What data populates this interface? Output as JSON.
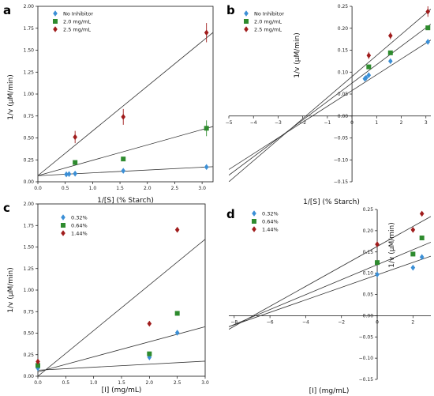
{
  "colors": {
    "blue": "#3b8fd6",
    "green": "#2e8b2e",
    "red": "#a01c1c",
    "line": "#333333",
    "axis": "#111111"
  },
  "chart_data": [
    {
      "id": "a",
      "panel_label": "a",
      "type": "scatter",
      "xlabel": "1/[S] (% Starch)",
      "ylabel": "1/v (µM/min)",
      "xlim": [
        0,
        3.2
      ],
      "ylim": [
        0,
        2.0
      ],
      "xticks": [
        "0.0",
        "0.5",
        "1.0",
        "1.5",
        "2.0",
        "2.5",
        "3.0"
      ],
      "yticks": [
        "0.00",
        "0.25",
        "0.50",
        "0.75",
        "1.00",
        "1.25",
        "1.50",
        "1.75",
        "2.00"
      ],
      "spines": "box",
      "legend_position": "top-left",
      "series": [
        {
          "name": "No Inhibitor",
          "color": "#3b8fd6",
          "marker": "diamond",
          "points": [
            [
              0.52,
              0.085
            ],
            [
              0.57,
              0.088
            ],
            [
              0.68,
              0.093
            ],
            [
              1.56,
              0.125
            ],
            [
              3.08,
              0.168
            ]
          ],
          "line": [
            0.07,
            0.032
          ]
        },
        {
          "name": "2.0 mg/mL",
          "color": "#2e8b2e",
          "marker": "square",
          "points": [
            [
              0.68,
              0.22
            ],
            [
              1.56,
              0.26
            ],
            [
              3.08,
              0.61
            ]
          ],
          "error": [
            0,
            0,
            0.09
          ],
          "line": [
            0.07,
            0.175
          ]
        },
        {
          "name": "2.5 mg/mL",
          "color": "#a01c1c",
          "marker": "diamond",
          "points": [
            [
              0.68,
              0.51
            ],
            [
              1.56,
              0.74
            ],
            [
              3.08,
              1.7
            ]
          ],
          "error": [
            0.07,
            0.09,
            0.11
          ],
          "line": [
            0.07,
            0.51
          ]
        }
      ]
    },
    {
      "id": "b",
      "panel_label": "b",
      "type": "scatter",
      "xlabel": "1/[S] (% Starch)",
      "ylabel": "1/v (µM/min)",
      "xlim": [
        -5,
        3.2
      ],
      "ylim": [
        -0.15,
        0.25
      ],
      "xticks": [
        "−5",
        "−4",
        "−3",
        "−2",
        "−1",
        "0",
        "1",
        "2",
        "3"
      ],
      "yticks": [
        "−0.15",
        "−0.10",
        "−0.05",
        "0.00",
        "0.05",
        "0.10",
        "0.15",
        "0.20",
        "0.25"
      ],
      "spines": "centered",
      "legend_position": "top-left",
      "series": [
        {
          "name": "No Inhibitor",
          "color": "#3b8fd6",
          "marker": "diamond",
          "points": [
            [
              0.52,
              0.085
            ],
            [
              0.57,
              0.087
            ],
            [
              0.68,
              0.093
            ],
            [
              1.56,
              0.125
            ],
            [
              3.08,
              0.169
            ]
          ],
          "line": [
            0.058,
            0.036
          ]
        },
        {
          "name": "2.0 mg/mL",
          "color": "#2e8b2e",
          "marker": "square",
          "points": [
            [
              0.68,
              0.112
            ],
            [
              1.56,
              0.144
            ],
            [
              3.08,
              0.201
            ]
          ],
          "line": [
            0.075,
            0.042
          ]
        },
        {
          "name": "2.5 mg/mL",
          "color": "#a01c1c",
          "marker": "diamond",
          "points": [
            [
              0.68,
              0.138
            ],
            [
              1.56,
              0.183
            ],
            [
              3.08,
              0.238
            ]
          ],
          "error": [
            0.008,
            0.008,
            0.012
          ],
          "line": [
            0.09,
            0.048
          ]
        }
      ]
    },
    {
      "id": "c",
      "panel_label": "c",
      "type": "scatter",
      "xlabel": "[I] (mg/mL)",
      "ylabel": "1/v (µM/min)",
      "xlim": [
        0,
        3.0
      ],
      "ylim": [
        0,
        2.0
      ],
      "xticks": [
        "0.0",
        "0.5",
        "1.0",
        "1.5",
        "2.0",
        "2.5",
        "3.0"
      ],
      "yticks": [
        "0.00",
        "0.25",
        "0.50",
        "0.75",
        "1.00",
        "1.25",
        "1.50",
        "1.75",
        "2.00"
      ],
      "spines": "box",
      "legend_position": "top-left",
      "series": [
        {
          "name": "0.32%",
          "color": "#3b8fd6",
          "marker": "diamond",
          "points": [
            [
              0,
              0.095
            ],
            [
              2.0,
              0.22
            ],
            [
              2.5,
              0.505
            ]
          ],
          "line": [
            0.07,
            0.035
          ]
        },
        {
          "name": "0.64%",
          "color": "#2e8b2e",
          "marker": "square",
          "points": [
            [
              0,
              0.125
            ],
            [
              2.0,
              0.26
            ],
            [
              2.5,
              0.73
            ]
          ],
          "line": [
            0.05,
            0.175
          ]
        },
        {
          "name": "1.44%",
          "color": "#a01c1c",
          "marker": "diamond",
          "points": [
            [
              0,
              0.17
            ],
            [
              2.0,
              0.61
            ],
            [
              2.5,
              1.7
            ]
          ],
          "line": [
            0.0,
            0.53
          ]
        }
      ]
    },
    {
      "id": "d",
      "panel_label": "d",
      "type": "scatter",
      "xlabel": "[I] (mg/mL)",
      "ylabel": "1/v (µM/min)",
      "xlim": [
        -8.3,
        3.0
      ],
      "ylim": [
        -0.15,
        0.25
      ],
      "xticks": [
        "−8",
        "−6",
        "−4",
        "−2",
        "0",
        "2"
      ],
      "yticks": [
        "−0.15",
        "−0.10",
        "−0.05",
        "0.00",
        "0.05",
        "0.10",
        "0.15",
        "0.20",
        "0.25"
      ],
      "spines": "centered",
      "legend_position": "top-left",
      "series": [
        {
          "name": "0.32%",
          "color": "#3b8fd6",
          "marker": "diamond",
          "points": [
            [
              0,
              0.097
            ],
            [
              2.0,
              0.113
            ],
            [
              2.5,
              0.138
            ]
          ],
          "line": [
            0.096,
            0.0147
          ]
        },
        {
          "name": "0.64%",
          "color": "#2e8b2e",
          "marker": "square",
          "points": [
            [
              0,
              0.125
            ],
            [
              2.0,
              0.145
            ],
            [
              2.5,
              0.183
            ]
          ],
          "line": [
            0.12,
            0.0176
          ]
        },
        {
          "name": "1.44%",
          "color": "#a01c1c",
          "marker": "diamond",
          "points": [
            [
              0,
              0.168
            ],
            [
              2.0,
              0.202
            ],
            [
              2.5,
              0.24
            ]
          ],
          "line": [
            0.163,
            0.0235
          ]
        }
      ]
    }
  ]
}
